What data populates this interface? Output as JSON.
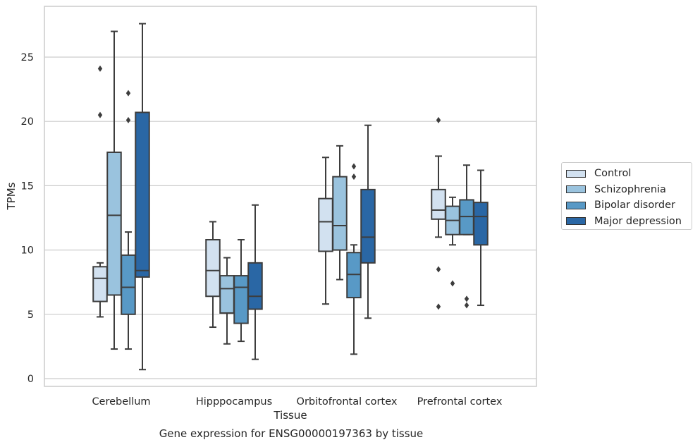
{
  "chart_data": {
    "type": "boxplot",
    "xlabel": "Tissue",
    "ylabel": "TPMs",
    "ylim": [
      -0.5,
      28.5
    ],
    "yticks": [
      0,
      5,
      10,
      15,
      20,
      25
    ],
    "grid": "horizontal",
    "legend_position": "right",
    "categories": [
      "Cerebellum",
      "Hipppocampus",
      "Orbitofrontal cortex",
      "Prefrontal cortex"
    ],
    "series": [
      {
        "name": "Control",
        "color": "#d2e1f0",
        "boxes": [
          {
            "min": 4.8,
            "q1": 6.0,
            "median": 7.8,
            "q3": 8.7,
            "max": 9.0,
            "outliers": [
              20.5,
              24.1
            ]
          },
          {
            "min": 4.0,
            "q1": 6.4,
            "median": 8.4,
            "q3": 10.8,
            "max": 12.2,
            "outliers": []
          },
          {
            "min": 5.8,
            "q1": 9.9,
            "median": 12.2,
            "q3": 14.0,
            "max": 17.2,
            "outliers": []
          },
          {
            "min": 11.0,
            "q1": 12.4,
            "median": 13.1,
            "q3": 14.7,
            "max": 17.3,
            "outliers": [
              5.6,
              8.5,
              20.1
            ]
          }
        ]
      },
      {
        "name": "Schizophrenia",
        "color": "#9ac3de",
        "boxes": [
          {
            "min": 2.3,
            "q1": 6.5,
            "median": 12.7,
            "q3": 17.6,
            "max": 27.0,
            "outliers": []
          },
          {
            "min": 2.7,
            "q1": 5.1,
            "median": 7.0,
            "q3": 8.0,
            "max": 9.4,
            "outliers": []
          },
          {
            "min": 7.7,
            "q1": 10.0,
            "median": 11.9,
            "q3": 15.7,
            "max": 18.1,
            "outliers": []
          },
          {
            "min": 10.4,
            "q1": 11.2,
            "median": 12.3,
            "q3": 13.4,
            "max": 14.1,
            "outliers": [
              7.4
            ]
          }
        ]
      },
      {
        "name": "Bipolar disorder",
        "color": "#5899c6",
        "boxes": [
          {
            "min": 2.3,
            "q1": 5.0,
            "median": 7.1,
            "q3": 9.6,
            "max": 11.4,
            "outliers": [
              20.1,
              22.2
            ]
          },
          {
            "min": 2.9,
            "q1": 4.3,
            "median": 7.1,
            "q3": 8.0,
            "max": 10.8,
            "outliers": []
          },
          {
            "min": 1.9,
            "q1": 6.3,
            "median": 8.1,
            "q3": 9.8,
            "max": 10.4,
            "outliers": [
              15.7,
              16.5
            ]
          },
          {
            "min": 11.2,
            "q1": 11.2,
            "median": 12.6,
            "q3": 13.9,
            "max": 16.6,
            "outliers": [
              5.7,
              6.2
            ]
          }
        ]
      },
      {
        "name": "Major depression",
        "color": "#2a67a5",
        "boxes": [
          {
            "min": 0.7,
            "q1": 7.9,
            "median": 8.4,
            "q3": 20.7,
            "max": 27.6,
            "outliers": []
          },
          {
            "min": 1.5,
            "q1": 5.4,
            "median": 6.4,
            "q3": 9.0,
            "max": 13.5,
            "outliers": []
          },
          {
            "min": 4.7,
            "q1": 9.0,
            "median": 11.0,
            "q3": 14.7,
            "max": 19.7,
            "outliers": []
          },
          {
            "min": 5.7,
            "q1": 10.4,
            "median": 12.6,
            "q3": 13.7,
            "max": 16.2,
            "outliers": []
          }
        ]
      }
    ]
  },
  "caption": "Gene expression for ENSG00000197363 by tissue"
}
